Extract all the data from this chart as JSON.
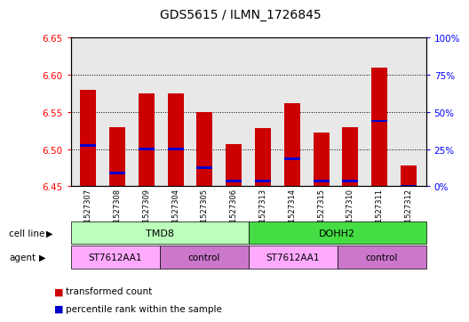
{
  "title": "GDS5615 / ILMN_1726845",
  "samples": [
    "GSM1527307",
    "GSM1527308",
    "GSM1527309",
    "GSM1527304",
    "GSM1527305",
    "GSM1527306",
    "GSM1527313",
    "GSM1527314",
    "GSM1527315",
    "GSM1527310",
    "GSM1527311",
    "GSM1527312"
  ],
  "bar_tops": [
    6.58,
    6.53,
    6.575,
    6.575,
    6.55,
    6.507,
    6.528,
    6.562,
    6.522,
    6.53,
    6.61,
    6.478
  ],
  "percentile_values": [
    6.505,
    6.468,
    6.5,
    6.5,
    6.475,
    6.457,
    6.457,
    6.487,
    6.457,
    6.457,
    6.538,
    6.45
  ],
  "bar_bottom": 6.45,
  "ylim_left": [
    6.45,
    6.65
  ],
  "ylim_right": [
    0,
    100
  ],
  "yticks_left": [
    6.45,
    6.5,
    6.55,
    6.6,
    6.65
  ],
  "yticks_right": [
    0,
    25,
    50,
    75,
    100
  ],
  "ytick_labels_right": [
    "0%",
    "25%",
    "50%",
    "75%",
    "100%"
  ],
  "bar_color": "#cc0000",
  "percentile_color": "#0000cc",
  "plot_bg": "#e8e8e8",
  "cell_lines": [
    {
      "label": "TMD8",
      "start": 0,
      "end": 5,
      "color": "#bbffbb"
    },
    {
      "label": "DOHH2",
      "start": 6,
      "end": 11,
      "color": "#44dd44"
    }
  ],
  "agents": [
    {
      "label": "ST7612AA1",
      "start": 0,
      "end": 2,
      "color": "#ffaaff"
    },
    {
      "label": "control",
      "start": 3,
      "end": 5,
      "color": "#cc77cc"
    },
    {
      "label": "ST7612AA1",
      "start": 6,
      "end": 8,
      "color": "#ffaaff"
    },
    {
      "label": "control",
      "start": 9,
      "end": 11,
      "color": "#cc77cc"
    }
  ]
}
